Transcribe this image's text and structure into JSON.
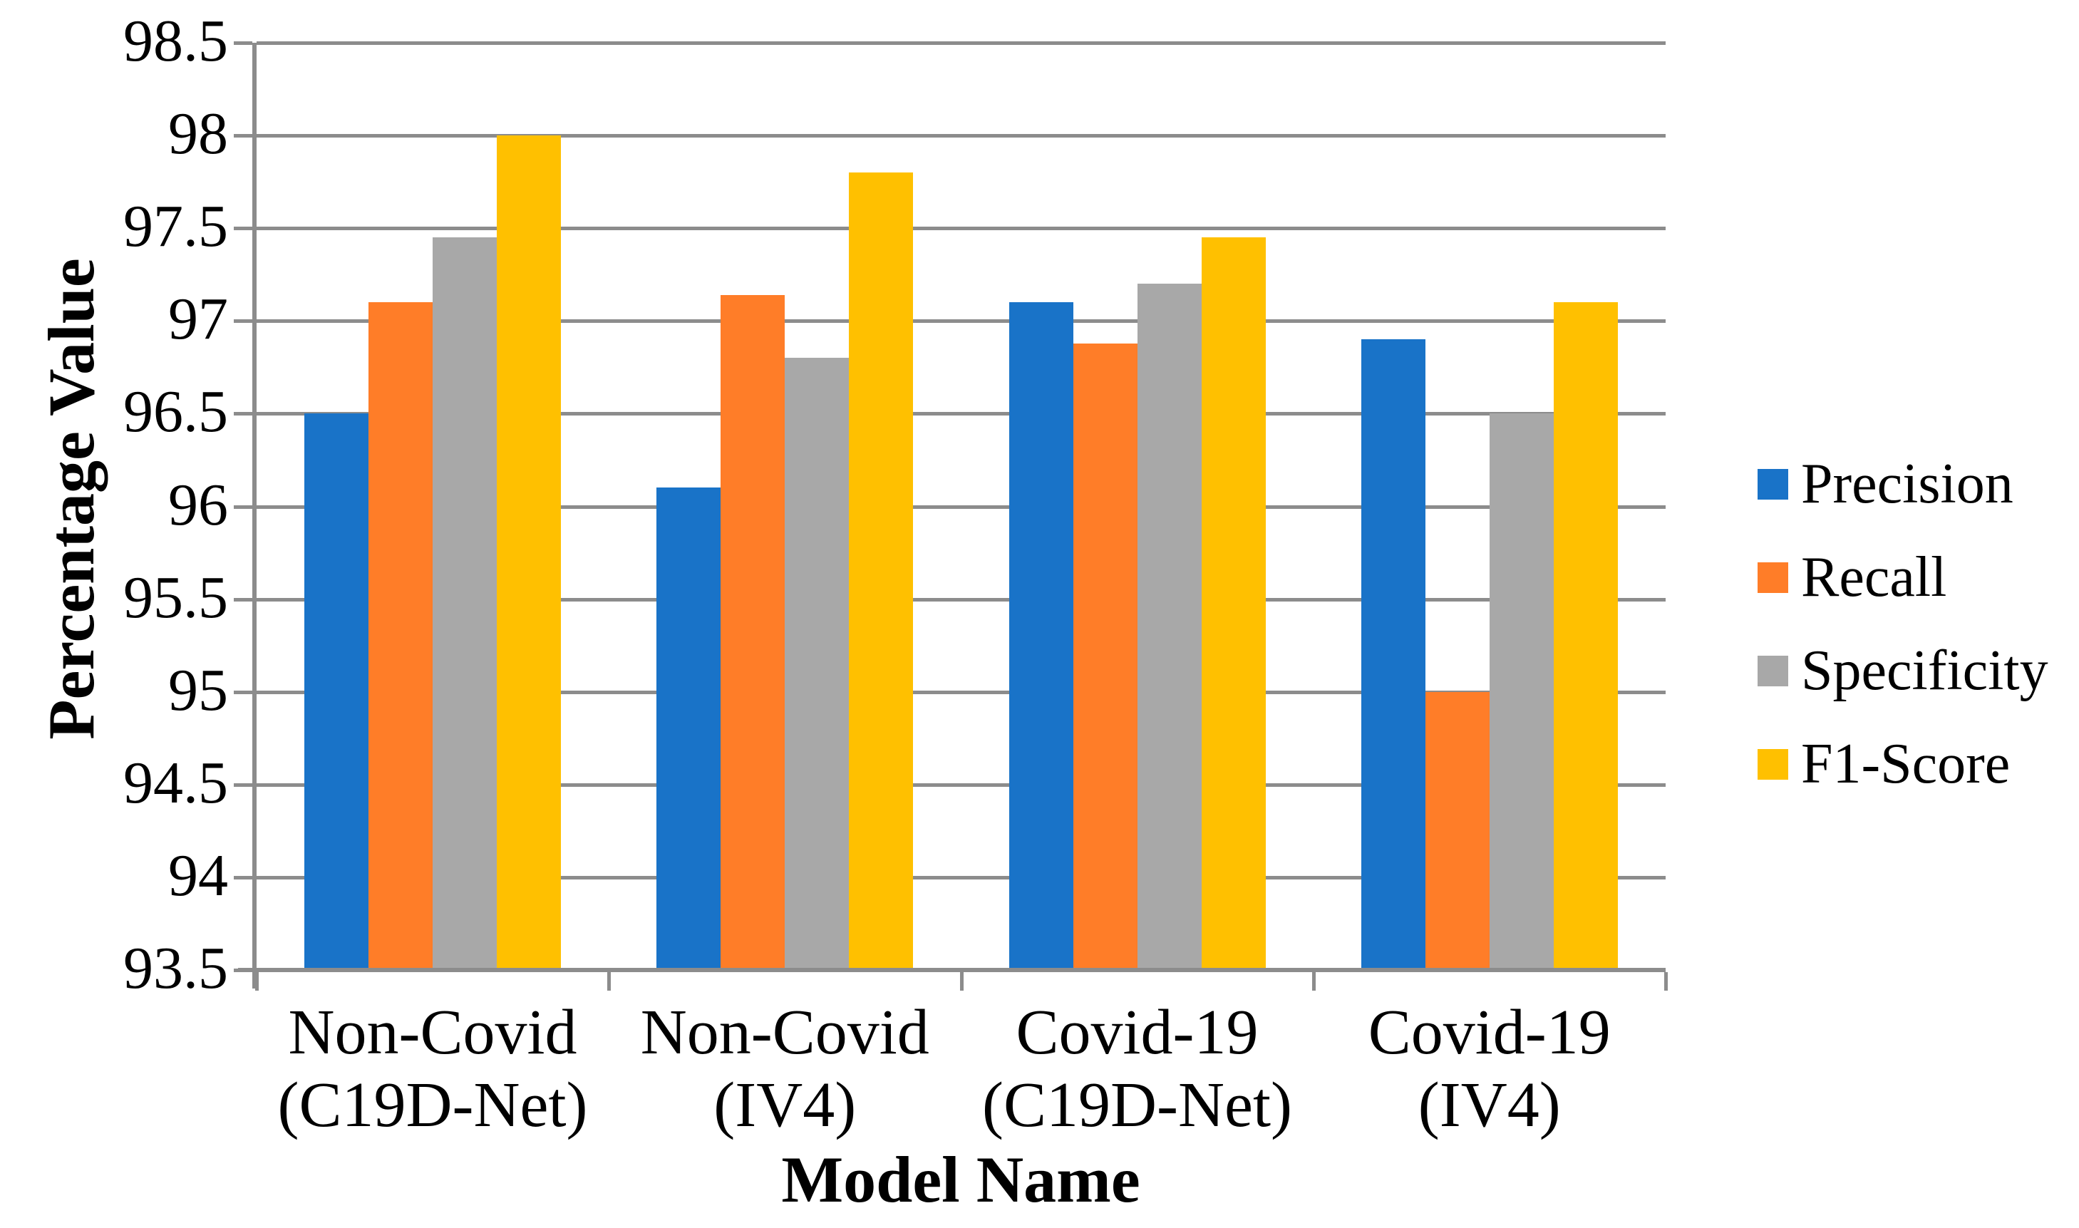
{
  "chart_data": {
    "type": "bar",
    "title": "",
    "xlabel": "Model Name",
    "ylabel": "Percentage Value",
    "categories": [
      {
        "line1": "Non-Covid",
        "line2": "(C19D-Net)"
      },
      {
        "line1": "Non-Covid",
        "line2": "(IV4)"
      },
      {
        "line1": "Covid-19",
        "line2": "(C19D-Net)"
      },
      {
        "line1": "Covid-19",
        "line2": "(IV4)"
      }
    ],
    "series": [
      {
        "name": "Precision",
        "color": "#1973C8",
        "values": [
          96.5,
          96.1,
          97.1,
          96.9
        ]
      },
      {
        "name": "Recall",
        "color": "#FF7D28",
        "values": [
          97.1,
          97.14,
          96.88,
          95.0
        ]
      },
      {
        "name": "Specificity",
        "color": "#A8A8A8",
        "values": [
          97.45,
          96.8,
          97.2,
          96.5
        ]
      },
      {
        "name": "F1-Score",
        "color": "#FFC000",
        "values": [
          98.0,
          97.8,
          97.45,
          97.1
        ]
      }
    ],
    "ylim": [
      93.5,
      98.5
    ],
    "ytick_labels": [
      "98.5",
      "98",
      "97.5",
      "97",
      "96.5",
      "96",
      "95.5",
      "95",
      "94.5",
      "94",
      "93.5"
    ],
    "grid": true,
    "legend_position": "right"
  },
  "colors": {
    "grid": "#8C8C8C",
    "axis": "#8C8C8C",
    "background": "#FFFFFF",
    "text": "#000000"
  }
}
